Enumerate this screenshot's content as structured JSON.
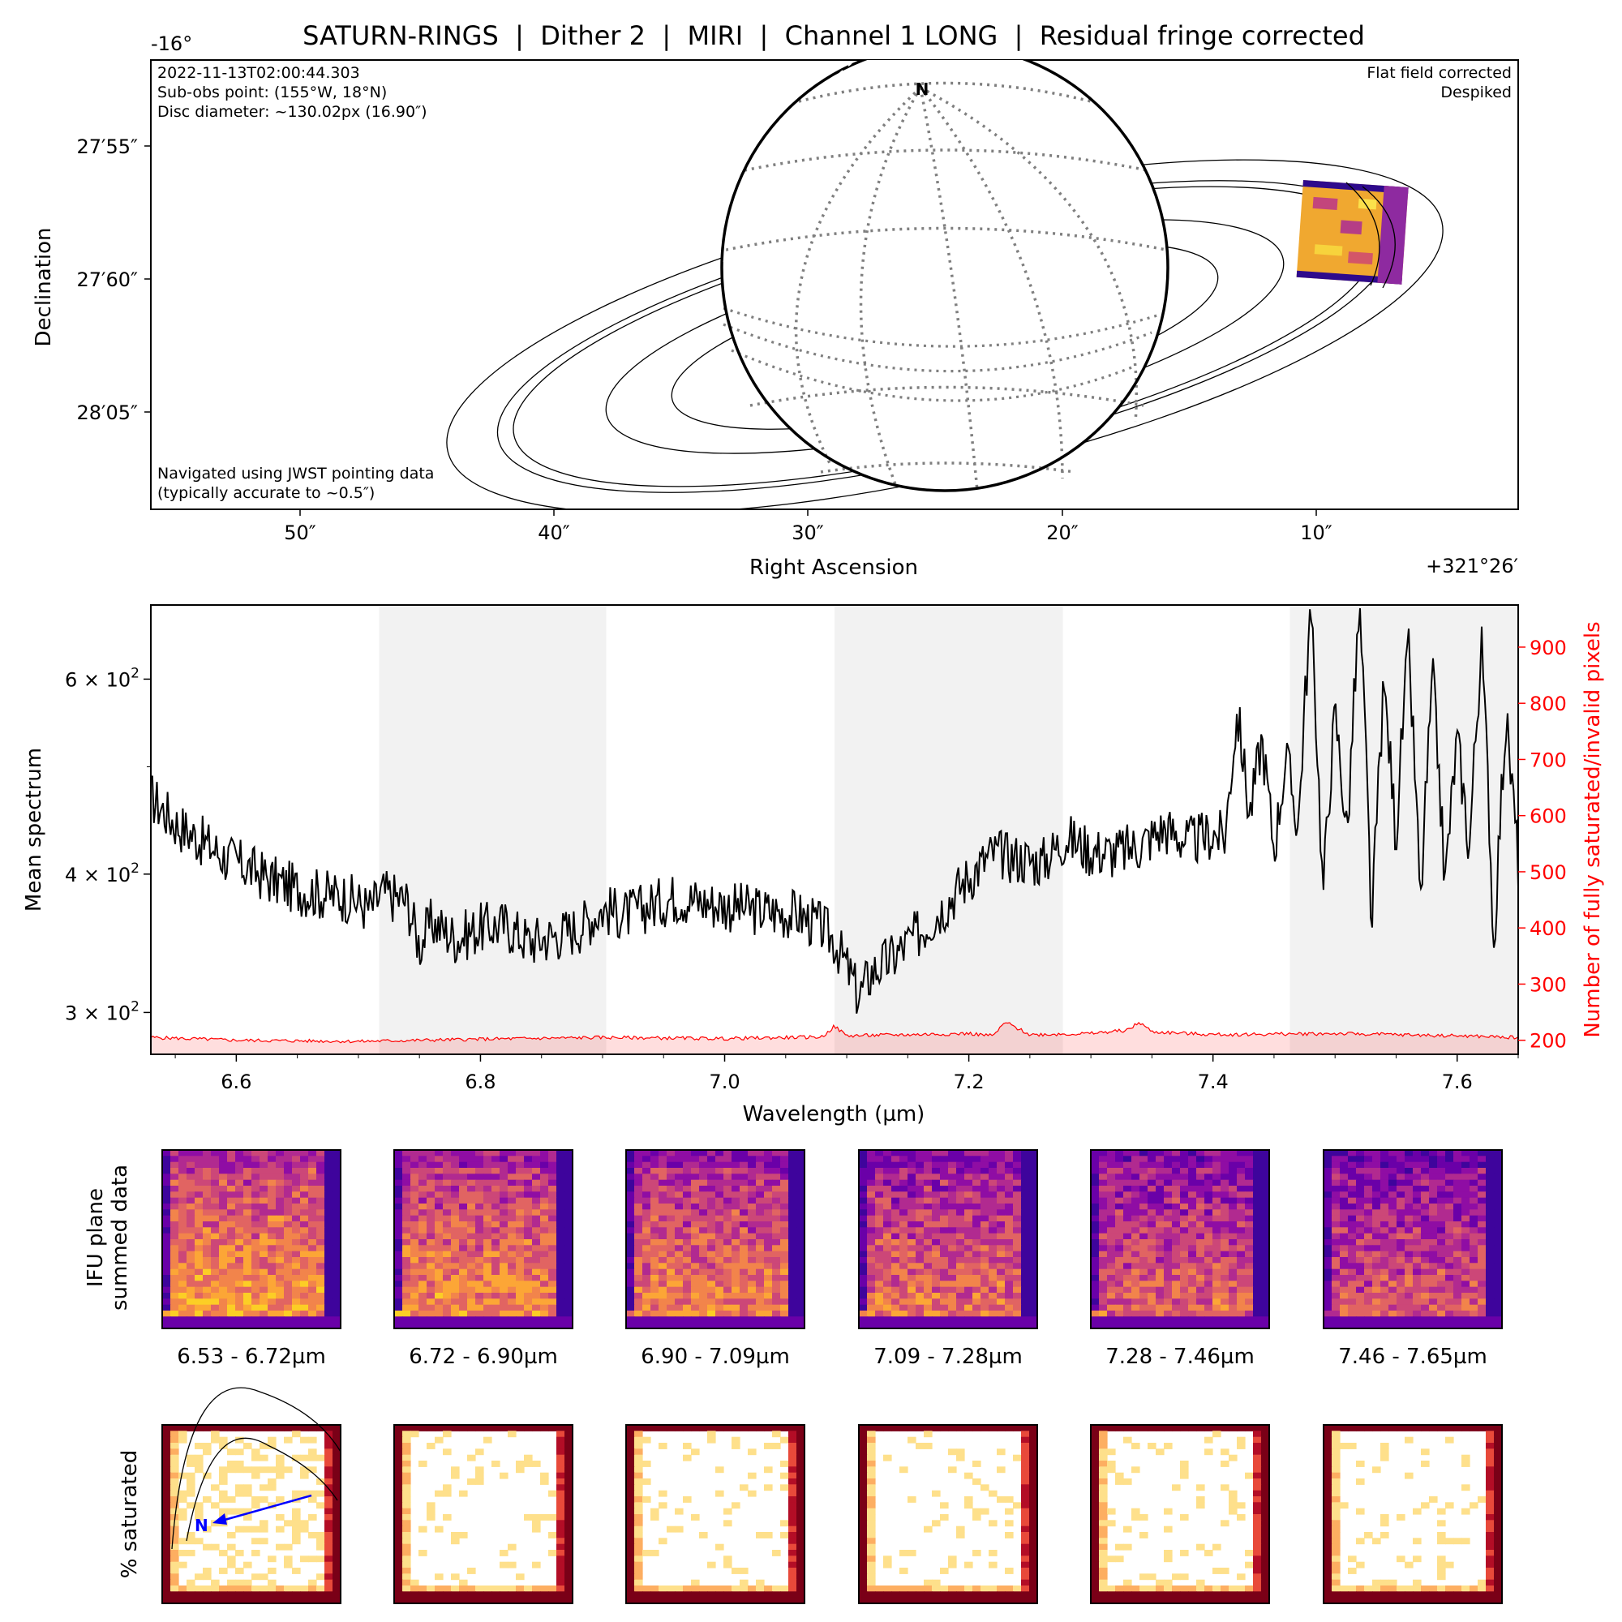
{
  "title": "SATURN-RINGS  |  Dither 2  |  MIRI  |  Channel 1 LONG  |  Residual fringe corrected",
  "chart_data": [
    {
      "type": "scatter",
      "panel": "navigation-map",
      "xlabel": "Right Ascension",
      "ylabel": "Declination",
      "x_offset_label": "+321°26′",
      "y_offset_label": "-16°",
      "x_ticks": [
        "50″",
        "40″",
        "30″",
        "20″",
        "10″"
      ],
      "y_ticks": [
        "27′55″",
        "27′60″",
        "28′05″"
      ],
      "info_top_left": [
        "2022-11-13T02:00:44.303",
        "Sub-obs point: (155°W, 18°N)",
        "Disc diameter: ~130.02px (16.90″)"
      ],
      "info_top_right": [
        "Flat field corrected",
        "Despiked"
      ],
      "info_bottom_left": [
        "Navigated using JWST pointing data",
        "(typically accurate to ~0.5″)"
      ],
      "north_label": "N",
      "grid": false
    },
    {
      "type": "line",
      "panel": "mean-spectrum",
      "xlabel": "Wavelength (µm)",
      "ylabel": "Mean spectrum",
      "y2label": "Number of fully saturated/invalid pixels",
      "xlim": [
        6.53,
        7.65
      ],
      "ylim": [
        275,
        700
      ],
      "y_scale": "log",
      "y2lim": [
        175,
        975
      ],
      "x_ticks": [
        "6.6",
        "6.8",
        "7.0",
        "7.2",
        "7.4",
        "7.6"
      ],
      "x_tick_values": [
        6.6,
        6.8,
        7.0,
        7.2,
        7.4,
        7.6
      ],
      "y_ticks": [
        {
          "mantissa": "3",
          "exp": "2",
          "value": 300
        },
        {
          "mantissa": "4",
          "exp": "2",
          "value": 400
        },
        {
          "mantissa": "6",
          "exp": "2",
          "value": 600
        }
      ],
      "y2_ticks": [
        "200",
        "300",
        "400",
        "500",
        "600",
        "700",
        "800",
        "900"
      ],
      "y2_tick_values": [
        200,
        300,
        400,
        500,
        600,
        700,
        800,
        900
      ],
      "shaded_ranges": [
        [
          6.717,
          6.903
        ],
        [
          7.09,
          7.277
        ],
        [
          7.463,
          7.65
        ]
      ],
      "series": [
        {
          "color": "#000000",
          "axis": "left",
          "x": [
            6.53,
            6.55,
            6.57,
            6.59,
            6.61,
            6.63,
            6.65,
            6.67,
            6.69,
            6.71,
            6.72,
            6.74,
            6.75,
            6.76,
            6.78,
            6.8,
            6.82,
            6.84,
            6.86,
            6.88,
            6.9,
            6.92,
            6.94,
            6.96,
            6.98,
            7.0,
            7.02,
            7.04,
            7.06,
            7.08,
            7.09,
            7.1,
            7.11,
            7.12,
            7.14,
            7.16,
            7.18,
            7.2,
            7.22,
            7.24,
            7.26,
            7.28,
            7.3,
            7.32,
            7.34,
            7.36,
            7.38,
            7.4,
            7.41,
            7.42,
            7.43,
            7.44,
            7.45,
            7.46,
            7.47,
            7.48,
            7.49,
            7.5,
            7.51,
            7.52,
            7.53,
            7.54,
            7.55,
            7.56,
            7.57,
            7.58,
            7.59,
            7.6,
            7.61,
            7.62,
            7.63,
            7.64,
            7.65
          ],
          "values": [
            470,
            445,
            430,
            415,
            405,
            395,
            388,
            384,
            382,
            372,
            385,
            378,
            345,
            362,
            350,
            358,
            360,
            348,
            352,
            358,
            372,
            368,
            375,
            382,
            378,
            375,
            372,
            370,
            368,
            358,
            348,
            330,
            310,
            326,
            338,
            355,
            375,
            398,
            418,
            414,
            410,
            432,
            420,
            418,
            425,
            440,
            428,
            435,
            432,
            560,
            450,
            530,
            420,
            510,
            440,
            690,
            380,
            560,
            430,
            690,
            350,
            590,
            430,
            640,
            370,
            600,
            390,
            530,
            420,
            640,
            340,
            550,
            410
          ]
        },
        {
          "color": "#ff0000",
          "axis": "right",
          "x": [
            6.53,
            6.6,
            6.7,
            6.8,
            6.9,
            7.0,
            7.08,
            7.09,
            7.1,
            7.15,
            7.2,
            7.22,
            7.23,
            7.25,
            7.3,
            7.33,
            7.34,
            7.35,
            7.4,
            7.5,
            7.6,
            7.65
          ],
          "values": [
            205,
            200,
            198,
            202,
            205,
            203,
            206,
            225,
            208,
            210,
            212,
            208,
            232,
            210,
            212,
            218,
            232,
            215,
            210,
            212,
            208,
            205
          ]
        }
      ]
    },
    {
      "type": "heatmap",
      "panel": "ifu-plane-summed-data",
      "ylabel": "IFU plane\nsummed data",
      "colormap": "plasma",
      "wavelength_ranges": [
        "6.53 - 6.72µm",
        "6.72 - 6.90µm",
        "6.90 - 7.09µm",
        "7.09 - 7.28µm",
        "7.28 - 7.46µm",
        "7.46 - 7.65µm"
      ]
    },
    {
      "type": "heatmap",
      "panel": "percent-saturated",
      "ylabel": "% saturated",
      "colormap": "YlOrRd",
      "north_label": "N"
    }
  ]
}
